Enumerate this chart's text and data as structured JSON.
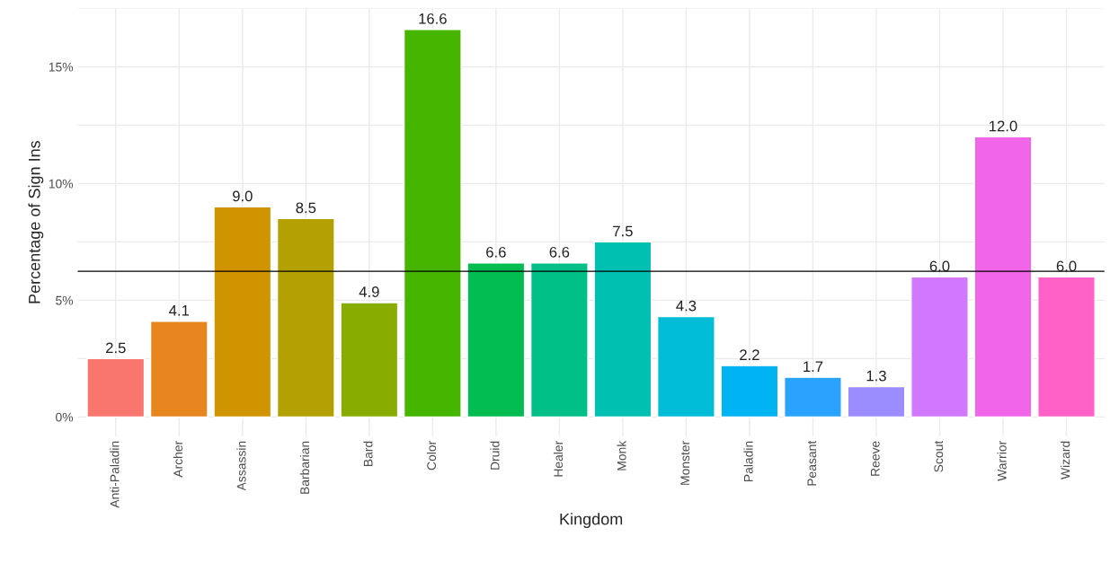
{
  "chart_data": {
    "type": "bar",
    "xlabel": "Kingdom",
    "ylabel": "Percentage of Sign Ins",
    "categories": [
      "Anti-Paladin",
      "Archer",
      "Assassin",
      "Barbarian",
      "Bard",
      "Color",
      "Druid",
      "Healer",
      "Monk",
      "Monster",
      "Paladin",
      "Peasant",
      "Reeve",
      "Scout",
      "Warrior",
      "Wizard"
    ],
    "values": [
      2.5,
      4.1,
      9.0,
      8.5,
      4.9,
      16.6,
      6.6,
      6.6,
      7.5,
      4.3,
      2.2,
      1.7,
      1.3,
      6.0,
      12.0,
      6.0
    ],
    "value_labels": [
      "2.5",
      "4.1",
      "9.0",
      "8.5",
      "4.9",
      "16.6",
      "6.6",
      "6.6",
      "7.5",
      "4.3",
      "2.2",
      "1.7",
      "1.3",
      "6.0",
      "12.0",
      "6.0"
    ],
    "colors": [
      "#f8766d",
      "#e7851e",
      "#d09400",
      "#b2a100",
      "#89ac00",
      "#45b500",
      "#00bc51",
      "#00c087",
      "#00c0b2",
      "#00bcd6",
      "#00b3f2",
      "#29a3ff",
      "#9c8dff",
      "#d277ff",
      "#f166e8",
      "#ff61c7"
    ],
    "ylim": [
      -0.83,
      17.5
    ],
    "yticks": [
      {
        "value": 0,
        "label": "0%"
      },
      {
        "value": 2.5,
        "label": null
      },
      {
        "value": 5,
        "label": "5%"
      },
      {
        "value": 7.5,
        "label": null
      },
      {
        "value": 10,
        "label": "10%"
      },
      {
        "value": 12.5,
        "label": null
      },
      {
        "value": 15,
        "label": "15%"
      },
      {
        "value": 17.5,
        "label": null
      }
    ],
    "ref_lines": [
      {
        "axis": "y",
        "value": 6.24,
        "color": "#000000"
      }
    ],
    "grid": true,
    "legend": false
  }
}
